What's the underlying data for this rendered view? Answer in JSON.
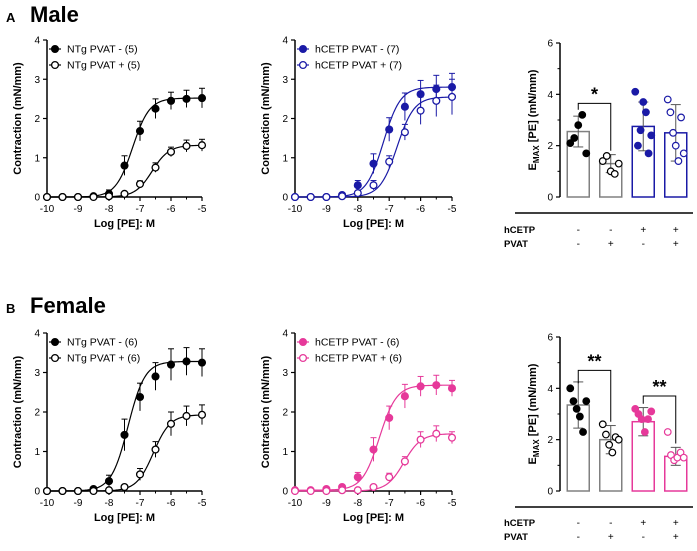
{
  "figure": {
    "rows": [
      {
        "label": "A",
        "title": "Male"
      },
      {
        "label": "B",
        "title": "Female"
      }
    ]
  },
  "chart_data": [
    {
      "id": "male-ntg",
      "type": "line",
      "xlabel": "Log [PE]: M",
      "ylabel": "Contraction (mN/mm)",
      "xlim": [
        -10,
        -5
      ],
      "ylim": [
        0,
        4
      ],
      "xticks": [
        -10,
        -9,
        -8,
        -7,
        -6,
        -5
      ],
      "yticks": [
        0,
        1,
        2,
        3,
        4
      ],
      "color": "#000000",
      "x": [
        -10,
        -9.5,
        -9,
        -8.5,
        -8,
        -7.5,
        -7,
        -6.5,
        -6,
        -5.5,
        -5
      ],
      "series": [
        {
          "name": "NTg PVAT - (5)",
          "filled": true,
          "values": [
            0,
            0,
            0,
            0.02,
            0.08,
            0.8,
            1.68,
            2.25,
            2.45,
            2.5,
            2.52
          ],
          "errors": [
            0,
            0,
            0,
            0.02,
            0.1,
            0.25,
            0.25,
            0.25,
            0.22,
            0.22,
            0.25
          ]
        },
        {
          "name": "NTg PVAT + (5)",
          "filled": false,
          "values": [
            0,
            0,
            0,
            0,
            0.02,
            0.08,
            0.33,
            0.75,
            1.15,
            1.3,
            1.32
          ],
          "errors": [
            0,
            0,
            0,
            0,
            0.02,
            0.04,
            0.08,
            0.12,
            0.12,
            0.15,
            0.15
          ]
        }
      ]
    },
    {
      "id": "male-hcetp",
      "type": "line",
      "xlabel": "Log [PE]: M",
      "ylabel": "Contraction (mN/mm)",
      "xlim": [
        -10,
        -5
      ],
      "ylim": [
        0,
        4
      ],
      "xticks": [
        -10,
        -9,
        -8,
        -7,
        -6,
        -5
      ],
      "yticks": [
        0,
        1,
        2,
        3,
        4
      ],
      "color": "#1a1aa6",
      "x": [
        -10,
        -9.5,
        -9,
        -8.5,
        -8,
        -7.5,
        -7,
        -6.5,
        -6,
        -5.5,
        -5
      ],
      "series": [
        {
          "name": "hCETP PVAT - (7)",
          "filled": true,
          "values": [
            0,
            0,
            0,
            0.05,
            0.3,
            0.85,
            1.72,
            2.3,
            2.62,
            2.75,
            2.8
          ],
          "errors": [
            0,
            0,
            0,
            0.05,
            0.12,
            0.25,
            0.3,
            0.35,
            0.35,
            0.35,
            0.35
          ]
        },
        {
          "name": "hCETP PVAT + (7)",
          "filled": false,
          "values": [
            0,
            0,
            0,
            0.02,
            0.1,
            0.3,
            0.9,
            1.65,
            2.2,
            2.45,
            2.55
          ],
          "errors": [
            0,
            0,
            0,
            0.02,
            0.05,
            0.12,
            0.15,
            0.2,
            0.35,
            0.4,
            0.45
          ]
        }
      ]
    },
    {
      "id": "male-emax",
      "type": "bar",
      "ylabel": "E_MAX [PE] (mN/mm)",
      "ylim": [
        0,
        6
      ],
      "yticks": [
        0,
        2,
        4,
        6
      ],
      "groups": [
        {
          "hcetp": "-",
          "pvat": "-",
          "mean": 2.55,
          "sd": 0.6,
          "color": "#808080",
          "filled": true,
          "points": [
            2.1,
            2.3,
            2.8,
            3.2,
            1.7
          ]
        },
        {
          "hcetp": "-",
          "pvat": "+",
          "mean": 1.3,
          "sd": 0.35,
          "color": "#808080",
          "filled": false,
          "points": [
            1.4,
            1.6,
            1.0,
            0.9,
            1.3
          ]
        },
        {
          "hcetp": "+",
          "pvat": "-",
          "mean": 2.75,
          "sd": 0.95,
          "color": "#1a1aa6",
          "filled": true,
          "points": [
            4.1,
            2.0,
            2.6,
            3.7,
            3.3,
            1.7,
            2.4
          ]
        },
        {
          "hcetp": "+",
          "pvat": "+",
          "mean": 2.5,
          "sd": 1.1,
          "color": "#1a1aa6",
          "filled": false,
          "points": [
            3.8,
            3.3,
            2.5,
            2.0,
            1.4,
            3.1,
            1.7
          ]
        }
      ],
      "row_labels": [
        "hCETP",
        "PVAT"
      ],
      "significance": [
        {
          "from": 0,
          "to": 1,
          "label": "*"
        }
      ]
    },
    {
      "id": "female-ntg",
      "type": "line",
      "xlabel": "Log [PE]: M",
      "ylabel": "Contraction (mN/mm)",
      "xlim": [
        -10,
        -5
      ],
      "ylim": [
        0,
        4
      ],
      "xticks": [
        -10,
        -9,
        -8,
        -7,
        -6,
        -5
      ],
      "yticks": [
        0,
        1,
        2,
        3,
        4
      ],
      "color": "#000000",
      "x": [
        -10,
        -9.5,
        -9,
        -8.5,
        -8,
        -7.5,
        -7,
        -6.5,
        -6,
        -5.5,
        -5
      ],
      "series": [
        {
          "name": "NTg PVAT - (6)",
          "filled": true,
          "values": [
            0,
            0,
            0,
            0.05,
            0.25,
            1.42,
            2.38,
            2.9,
            3.2,
            3.28,
            3.25
          ],
          "errors": [
            0,
            0,
            0,
            0.05,
            0.15,
            0.4,
            0.35,
            0.35,
            0.4,
            0.35,
            0.35
          ]
        },
        {
          "name": "NTg PVAT + (6)",
          "filled": false,
          "values": [
            0,
            0,
            0,
            0,
            0.02,
            0.1,
            0.42,
            1.05,
            1.7,
            1.9,
            1.93
          ],
          "errors": [
            0,
            0,
            0,
            0,
            0.02,
            0.05,
            0.15,
            0.2,
            0.3,
            0.25,
            0.25
          ]
        }
      ]
    },
    {
      "id": "female-hcetp",
      "type": "line",
      "xlabel": "Log [PE]: M",
      "ylabel": "Contraction (mN/mm)",
      "xlim": [
        -10,
        -5
      ],
      "ylim": [
        0,
        4
      ],
      "xticks": [
        -10,
        -9,
        -8,
        -7,
        -6,
        -5
      ],
      "yticks": [
        0,
        1,
        2,
        3,
        4
      ],
      "color": "#e6399a",
      "x": [
        -10,
        -9.5,
        -9,
        -8.5,
        -8,
        -7.5,
        -7,
        -6.5,
        -6,
        -5.5,
        -5
      ],
      "series": [
        {
          "name": "hCETP PVAT - (6)",
          "filled": true,
          "values": [
            0.02,
            0.02,
            0.05,
            0.1,
            0.35,
            1.05,
            1.85,
            2.4,
            2.65,
            2.68,
            2.6
          ],
          "errors": [
            0.02,
            0.02,
            0.05,
            0.05,
            0.12,
            0.3,
            0.3,
            0.3,
            0.25,
            0.25,
            0.2
          ]
        },
        {
          "name": "hCETP PVAT + (6)",
          "filled": false,
          "values": [
            0,
            0,
            0,
            0.02,
            0.02,
            0.1,
            0.35,
            0.75,
            1.3,
            1.45,
            1.35
          ],
          "errors": [
            0,
            0,
            0,
            0.02,
            0.02,
            0.05,
            0.1,
            0.12,
            0.2,
            0.2,
            0.15
          ]
        }
      ]
    },
    {
      "id": "female-emax",
      "type": "bar",
      "ylabel": "E_MAX [PE] (mN/mm)",
      "ylim": [
        0,
        6
      ],
      "yticks": [
        0,
        2,
        4,
        6
      ],
      "groups": [
        {
          "hcetp": "-",
          "pvat": "-",
          "mean": 3.35,
          "sd": 0.9,
          "color": "#808080",
          "filled": true,
          "points": [
            4.0,
            3.5,
            3.2,
            2.9,
            2.3,
            3.5
          ]
        },
        {
          "hcetp": "-",
          "pvat": "+",
          "mean": 2.0,
          "sd": 0.55,
          "color": "#808080",
          "filled": false,
          "points": [
            2.6,
            2.2,
            1.8,
            1.5,
            2.1,
            2.0
          ]
        },
        {
          "hcetp": "+",
          "pvat": "-",
          "mean": 2.7,
          "sd": 0.55,
          "color": "#e6399a",
          "filled": true,
          "points": [
            3.2,
            3.0,
            2.8,
            2.3,
            2.8,
            3.1
          ]
        },
        {
          "hcetp": "+",
          "pvat": "+",
          "mean": 1.35,
          "sd": 0.35,
          "color": "#e6399a",
          "filled": false,
          "points": [
            2.3,
            1.4,
            1.2,
            1.3,
            1.5,
            1.3
          ]
        }
      ],
      "row_labels": [
        "hCETP",
        "PVAT"
      ],
      "significance": [
        {
          "from": 0,
          "to": 1,
          "label": "**"
        },
        {
          "from": 2,
          "to": 3,
          "label": "**"
        }
      ]
    }
  ]
}
